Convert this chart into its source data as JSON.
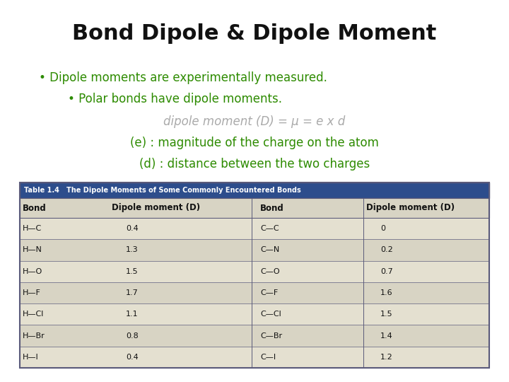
{
  "title": "Bond Dipole & Dipole Moment",
  "bullet1": "• Dipole moments are experimentally measured.",
  "bullet2": "    • Polar bonds have dipole moments.",
  "formula": "dipole moment (D) = μ = e x d",
  "line_e": "(e) : magnitude of the charge on the atom",
  "line_d": "(d) : distance between the two charges",
  "green_color": "#2d8b00",
  "gray_color": "#aaaaaa",
  "black_color": "#111111",
  "title_color": "#111111",
  "table_header_bg": "#2d4d8c",
  "table_header_fg": "#ffffff",
  "table_col_header_bg": "#d8d4c4",
  "table_row_bg1": "#e4e0d0",
  "table_row_bg2": "#d8d4c4",
  "table_border": "#5a5a7a",
  "table_title": "Table 1.4   The Dipole Moments of Some Commonly Encountered Bonds",
  "col_headers": [
    "Bond",
    "Dipole moment (D)",
    "Bond",
    "Dipole moment (D)"
  ],
  "left_bonds": [
    "H—C",
    "H—N",
    "H—O",
    "H—F",
    "H—Cl",
    "H—Br",
    "H—I"
  ],
  "left_dipoles": [
    "0.4",
    "1.3",
    "1.5",
    "1.7",
    "1.1",
    "0.8",
    "0.4"
  ],
  "right_bonds": [
    "C—C",
    "C—N",
    "C—O",
    "C—F",
    "C—Cl",
    "C—Br",
    "C—I"
  ],
  "right_dipoles": [
    "0",
    "0.2",
    "0.7",
    "1.6",
    "1.5",
    "1.4",
    "1.2"
  ],
  "bg_color": "#ffffff"
}
